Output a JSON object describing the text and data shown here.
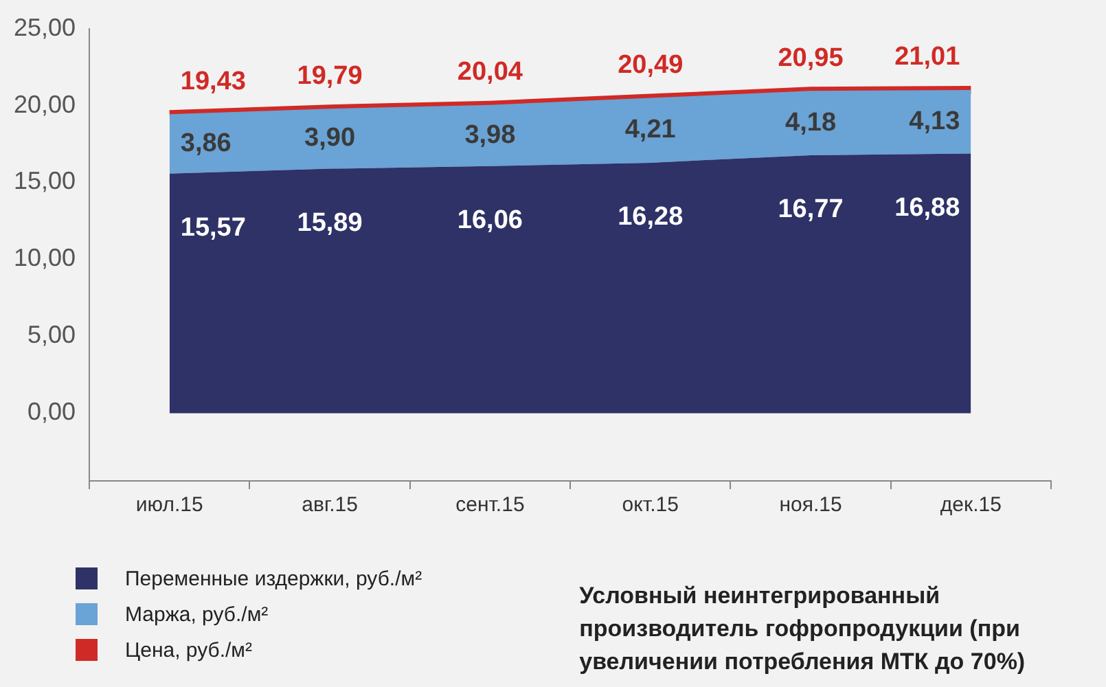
{
  "chart_data": {
    "type": "area",
    "title": "Условный неинтегрированный производитель  гофропродукции (при увеличении потребления МТК до 70%)",
    "categories": [
      "июл.15",
      "авг.15",
      "сент.15",
      "окт.15",
      "ноя.15",
      "дек.15"
    ],
    "stacked": true,
    "series": [
      {
        "name": "Переменные издержки, руб./м²",
        "color": "#2e3267",
        "values": [
          15.57,
          15.89,
          16.06,
          16.28,
          16.77,
          16.88
        ],
        "value_labels": [
          "15,57",
          "15,89",
          "16,06",
          "16,28",
          "16,77",
          "16,88"
        ]
      },
      {
        "name": "Маржа, руб./м²",
        "color": "#6aa3d5",
        "values": [
          3.86,
          3.9,
          3.98,
          4.21,
          4.18,
          4.13
        ],
        "value_labels": [
          "3,86",
          "3,90",
          "3,98",
          "4,21",
          "4,18",
          "4,13"
        ]
      },
      {
        "name": "Цена, руб./м²",
        "type": "line",
        "color": "#d02a26",
        "values": [
          19.43,
          19.79,
          20.04,
          20.49,
          20.95,
          21.01
        ],
        "value_labels": [
          "19,43",
          "19,79",
          "20,04",
          "20,49",
          "20,95",
          "21,01"
        ]
      }
    ],
    "ylim": [
      -4.4,
      25
    ],
    "yticks": [
      {
        "value": 0,
        "label": "0,00"
      },
      {
        "value": 5,
        "label": "5,00"
      },
      {
        "value": 10,
        "label": "10,00"
      },
      {
        "value": 15,
        "label": "15,00"
      },
      {
        "value": 20,
        "label": "20,00"
      },
      {
        "value": 25,
        "label": "25,00"
      }
    ],
    "legend": "bottom left",
    "grid": false
  }
}
